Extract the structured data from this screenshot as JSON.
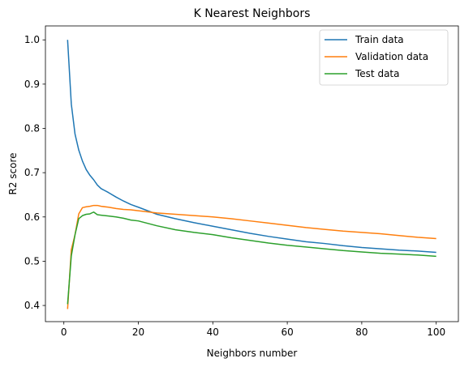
{
  "chart_data": {
    "type": "line",
    "title": "K Nearest Neighbors",
    "xlabel": "Neighbors number",
    "ylabel": "R2 score",
    "xlim": [
      -4.95,
      105.95
    ],
    "ylim": [
      0.3635,
      1.0315
    ],
    "xticks": [
      0,
      20,
      40,
      60,
      80,
      100
    ],
    "xtick_labels": [
      "0",
      "20",
      "40",
      "60",
      "80",
      "100"
    ],
    "yticks": [
      0.4,
      0.5,
      0.6,
      0.7,
      0.8,
      0.9,
      1.0
    ],
    "ytick_labels": [
      "0.4",
      "0.5",
      "0.6",
      "0.7",
      "0.8",
      "0.9",
      "1.0"
    ],
    "grid": false,
    "legend_position": "top-right",
    "x": [
      1,
      2,
      3,
      4,
      5,
      6,
      7,
      8,
      9,
      10,
      12,
      14,
      16,
      18,
      20,
      25,
      30,
      35,
      40,
      45,
      50,
      55,
      60,
      65,
      70,
      75,
      80,
      85,
      90,
      95,
      100
    ],
    "series": [
      {
        "name": "Train data",
        "color": "#1f77b4",
        "values": [
          1.0,
          0.855,
          0.787,
          0.751,
          0.726,
          0.707,
          0.694,
          0.684,
          0.672,
          0.664,
          0.655,
          0.645,
          0.636,
          0.628,
          0.622,
          0.606,
          0.596,
          0.587,
          0.579,
          0.571,
          0.563,
          0.556,
          0.55,
          0.544,
          0.54,
          0.535,
          0.531,
          0.528,
          0.525,
          0.523,
          0.52
        ]
      },
      {
        "name": "Validation data",
        "color": "#ff7f0e",
        "values": [
          0.392,
          0.526,
          0.56,
          0.607,
          0.621,
          0.623,
          0.624,
          0.626,
          0.626,
          0.624,
          0.622,
          0.619,
          0.617,
          0.616,
          0.614,
          0.609,
          0.606,
          0.603,
          0.6,
          0.596,
          0.591,
          0.586,
          0.581,
          0.576,
          0.572,
          0.568,
          0.565,
          0.562,
          0.558,
          0.554,
          0.551
        ]
      },
      {
        "name": "Test data",
        "color": "#2ca02c",
        "values": [
          0.403,
          0.512,
          0.56,
          0.596,
          0.603,
          0.606,
          0.607,
          0.611,
          0.605,
          0.604,
          0.602,
          0.6,
          0.597,
          0.593,
          0.591,
          0.58,
          0.571,
          0.565,
          0.56,
          0.553,
          0.547,
          0.541,
          0.536,
          0.532,
          0.528,
          0.524,
          0.521,
          0.518,
          0.516,
          0.514,
          0.511
        ]
      }
    ]
  }
}
